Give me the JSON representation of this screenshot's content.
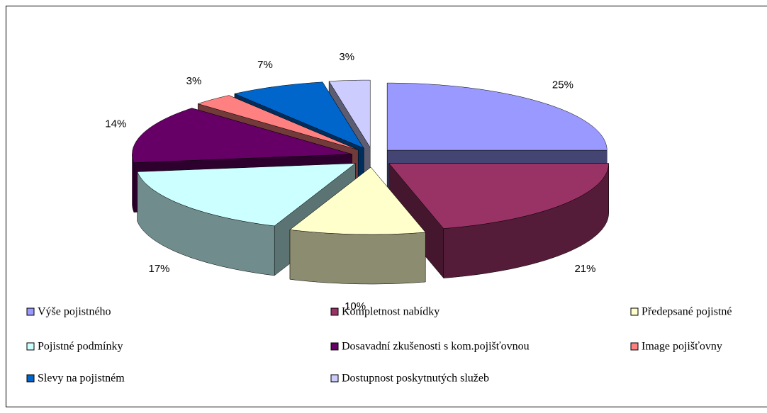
{
  "chart_data": {
    "type": "pie3d",
    "categories": [
      "Výše pojistného",
      "Kompletnost nabídky",
      "Předepsané pojistné",
      "Pojistné podmínky",
      "Dosavadní zkušenosti s kom.pojišťovnou",
      "Image pojišťovny",
      "Slevy na pojistném",
      "Dostupnost poskytnutých služeb"
    ],
    "values": [
      25,
      21,
      10,
      17,
      14,
      3,
      7,
      3
    ],
    "value_labels": [
      "25%",
      "21%",
      "10%",
      "17%",
      "14%",
      "3%",
      "7%",
      "3%"
    ],
    "colors": [
      "#9999ff",
      "#993366",
      "#ffffcc",
      "#ccffff",
      "#660066",
      "#ff8080",
      "#0066cc",
      "#ccccff"
    ],
    "legend": "bottom"
  }
}
